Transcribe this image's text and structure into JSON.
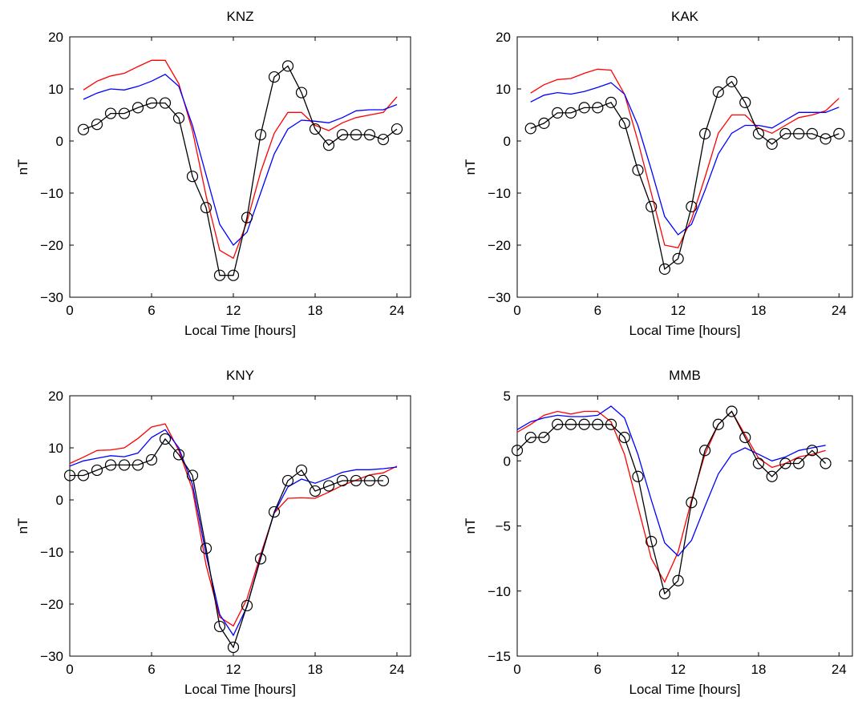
{
  "chart_data": [
    {
      "type": "line",
      "title": "KNZ",
      "xlabel": "Local Time [hours]",
      "ylabel": "nT",
      "xlim": [
        0,
        25
      ],
      "ylim": [
        -30,
        20
      ],
      "xticks": [
        0,
        6,
        12,
        18,
        24
      ],
      "yticks": [
        -30,
        -20,
        -10,
        0,
        10,
        20
      ],
      "grid": false,
      "series": [
        {
          "color": "#ff0000",
          "marker": "none",
          "x": [
            1,
            2,
            3,
            4,
            5,
            6,
            7,
            8,
            9,
            10,
            11,
            12,
            13,
            14,
            15,
            16,
            17,
            18,
            19,
            20,
            21,
            22,
            23,
            24
          ],
          "y": [
            9.8,
            11.5,
            12.5,
            13.0,
            14.3,
            15.5,
            15.5,
            11.0,
            2.0,
            -10.5,
            -21.0,
            -22.5,
            -15.5,
            -6.0,
            1.5,
            5.5,
            5.5,
            3.0,
            2.0,
            3.5,
            4.5,
            5.0,
            5.5,
            8.5
          ]
        },
        {
          "color": "#0000ff",
          "marker": "none",
          "x": [
            1,
            2,
            3,
            4,
            5,
            6,
            7,
            8,
            9,
            10,
            11,
            12,
            13,
            14,
            15,
            16,
            17,
            18,
            19,
            20,
            21,
            22,
            23,
            24
          ],
          "y": [
            8.0,
            9.2,
            10.0,
            9.8,
            10.5,
            11.5,
            12.8,
            10.5,
            3.0,
            -6.5,
            -16.0,
            -20.0,
            -17.5,
            -10.0,
            -2.5,
            2.3,
            4.0,
            3.8,
            3.5,
            4.5,
            5.8,
            6.0,
            6.0,
            7.0
          ]
        },
        {
          "color": "#000000",
          "marker": "circle",
          "x": [
            1,
            2,
            3,
            4,
            5,
            6,
            7,
            8,
            9,
            10,
            11,
            12,
            13,
            14,
            15,
            16,
            17,
            18,
            19,
            20,
            21,
            22,
            23,
            24
          ],
          "y": [
            2.2,
            3.2,
            5.3,
            5.3,
            6.4,
            7.3,
            7.3,
            4.4,
            -6.8,
            -12.8,
            -25.8,
            -25.8,
            -14.7,
            1.2,
            12.3,
            14.4,
            9.3,
            2.3,
            -0.8,
            1.2,
            1.2,
            1.2,
            0.3,
            2.3
          ]
        }
      ]
    },
    {
      "type": "line",
      "title": "KAK",
      "xlabel": "Local Time [hours]",
      "ylabel": "nT",
      "xlim": [
        0,
        25
      ],
      "ylim": [
        -30,
        20
      ],
      "xticks": [
        0,
        6,
        12,
        18,
        24
      ],
      "yticks": [
        -30,
        -20,
        -10,
        0,
        10,
        20
      ],
      "grid": false,
      "series": [
        {
          "color": "#ff0000",
          "marker": "none",
          "x": [
            1,
            2,
            3,
            4,
            5,
            6,
            7,
            8,
            9,
            10,
            11,
            12,
            13,
            14,
            15,
            16,
            17,
            18,
            19,
            20,
            21,
            22,
            23,
            24
          ],
          "y": [
            9.2,
            10.8,
            11.8,
            12.0,
            13.0,
            13.8,
            13.6,
            9.0,
            0.0,
            -10.0,
            -20.0,
            -20.5,
            -15.0,
            -7.0,
            1.5,
            5.0,
            5.0,
            2.5,
            1.5,
            3.0,
            4.5,
            5.0,
            5.8,
            8.2
          ]
        },
        {
          "color": "#0000ff",
          "marker": "none",
          "x": [
            1,
            2,
            3,
            4,
            5,
            6,
            7,
            8,
            9,
            10,
            11,
            12,
            13,
            14,
            15,
            16,
            17,
            18,
            19,
            20,
            21,
            22,
            23,
            24
          ],
          "y": [
            7.5,
            8.8,
            9.3,
            9.0,
            9.5,
            10.3,
            11.2,
            9.0,
            3.0,
            -5.5,
            -14.5,
            -18.0,
            -16.0,
            -9.5,
            -2.5,
            1.5,
            3.0,
            3.0,
            2.5,
            4.0,
            5.5,
            5.5,
            5.5,
            6.5
          ]
        },
        {
          "color": "#000000",
          "marker": "circle",
          "x": [
            1,
            2,
            3,
            4,
            5,
            6,
            7,
            8,
            9,
            10,
            11,
            12,
            13,
            14,
            15,
            16,
            17,
            18,
            19,
            20,
            21,
            22,
            23,
            24
          ],
          "y": [
            2.4,
            3.4,
            5.4,
            5.4,
            6.4,
            6.4,
            7.4,
            3.4,
            -5.6,
            -12.6,
            -24.6,
            -22.6,
            -12.6,
            1.4,
            9.4,
            11.4,
            7.4,
            1.4,
            -0.6,
            1.4,
            1.4,
            1.4,
            0.4,
            1.4
          ]
        }
      ]
    },
    {
      "type": "line",
      "title": "KNY",
      "xlabel": "Local Time [hours]",
      "ylabel": "nT",
      "xlim": [
        0,
        25
      ],
      "ylim": [
        -30,
        20
      ],
      "xticks": [
        0,
        6,
        12,
        18,
        24
      ],
      "yticks": [
        -30,
        -20,
        -10,
        0,
        10,
        20
      ],
      "grid": false,
      "series": [
        {
          "color": "#ff0000",
          "marker": "none",
          "x": [
            0,
            1,
            2,
            3,
            4,
            5,
            6,
            7,
            8,
            9,
            10,
            11,
            12,
            13,
            14,
            15,
            16,
            17,
            18,
            19,
            20,
            21,
            22,
            23,
            24
          ],
          "y": [
            7.0,
            8.2,
            9.5,
            9.6,
            10.0,
            11.8,
            14.0,
            14.6,
            9.5,
            2.0,
            -12.5,
            -22.5,
            -24.2,
            -19.0,
            -10.5,
            -2.5,
            0.3,
            0.4,
            0.3,
            1.5,
            2.8,
            3.8,
            4.8,
            5.2,
            6.5
          ]
        },
        {
          "color": "#0000ff",
          "marker": "none",
          "x": [
            0,
            1,
            2,
            3,
            4,
            5,
            6,
            7,
            8,
            9,
            10,
            11,
            12,
            13,
            14,
            15,
            16,
            17,
            18,
            19,
            20,
            21,
            22,
            23,
            24
          ],
          "y": [
            6.5,
            7.5,
            8.0,
            8.5,
            8.3,
            9.0,
            12.0,
            13.5,
            10.0,
            3.0,
            -10.5,
            -22.0,
            -26.0,
            -20.5,
            -11.0,
            -2.5,
            2.5,
            4.0,
            3.2,
            4.2,
            5.3,
            5.8,
            5.8,
            6.0,
            6.3
          ]
        },
        {
          "color": "#000000",
          "marker": "circle",
          "x": [
            0,
            1,
            2,
            3,
            4,
            5,
            6,
            7,
            8,
            9,
            10,
            11,
            12,
            13,
            14,
            15,
            16,
            17,
            18,
            19,
            20,
            21,
            22,
            23
          ],
          "y": [
            4.7,
            4.7,
            5.7,
            6.7,
            6.7,
            6.7,
            7.7,
            11.7,
            8.7,
            4.7,
            -9.3,
            -24.3,
            -28.3,
            -20.3,
            -11.3,
            -2.3,
            3.7,
            5.7,
            1.7,
            2.7,
            3.7,
            3.7,
            3.7,
            3.7
          ]
        }
      ]
    },
    {
      "type": "line",
      "title": "MMB",
      "xlabel": "Local Time [hours]",
      "ylabel": "nT",
      "xlim": [
        0,
        25
      ],
      "ylim": [
        -15,
        5
      ],
      "xticks": [
        0,
        6,
        12,
        18,
        24
      ],
      "yticks": [
        -15,
        -10,
        -5,
        0,
        5
      ],
      "grid": false,
      "series": [
        {
          "color": "#ff0000",
          "marker": "none",
          "x": [
            0,
            1,
            2,
            3,
            4,
            5,
            6,
            7,
            8,
            9,
            10,
            11,
            12,
            13,
            14,
            15,
            16,
            17,
            18,
            19,
            20,
            21,
            22,
            23
          ],
          "y": [
            2.2,
            2.8,
            3.5,
            3.8,
            3.6,
            3.8,
            3.8,
            3.0,
            0.5,
            -3.5,
            -7.5,
            -9.3,
            -7.0,
            -3.0,
            0.5,
            2.8,
            3.8,
            2.0,
            0.2,
            -0.5,
            -0.2,
            0.3,
            0.5,
            0.8
          ]
        },
        {
          "color": "#0000ff",
          "marker": "none",
          "x": [
            0,
            1,
            2,
            3,
            4,
            5,
            6,
            7,
            8,
            9,
            10,
            11,
            12,
            13,
            14,
            15,
            16,
            17,
            18,
            19,
            20,
            21,
            22,
            23
          ],
          "y": [
            2.4,
            3.0,
            3.3,
            3.5,
            3.4,
            3.4,
            3.5,
            4.2,
            3.3,
            0.5,
            -3.0,
            -6.3,
            -7.3,
            -6.1,
            -3.5,
            -1.0,
            0.5,
            1.0,
            0.5,
            0.0,
            0.3,
            0.8,
            1.0,
            1.2
          ]
        },
        {
          "color": "#000000",
          "marker": "circle",
          "x": [
            0,
            1,
            2,
            3,
            4,
            5,
            6,
            7,
            8,
            9,
            10,
            11,
            12,
            13,
            14,
            15,
            16,
            17,
            18,
            19,
            20,
            21,
            22,
            23
          ],
          "y": [
            0.8,
            1.8,
            1.8,
            2.8,
            2.8,
            2.8,
            2.8,
            2.8,
            1.8,
            -1.2,
            -6.2,
            -10.2,
            -9.2,
            -3.2,
            0.8,
            2.8,
            3.8,
            1.8,
            -0.2,
            -1.2,
            -0.2,
            -0.2,
            0.8,
            -0.2
          ]
        }
      ]
    }
  ]
}
